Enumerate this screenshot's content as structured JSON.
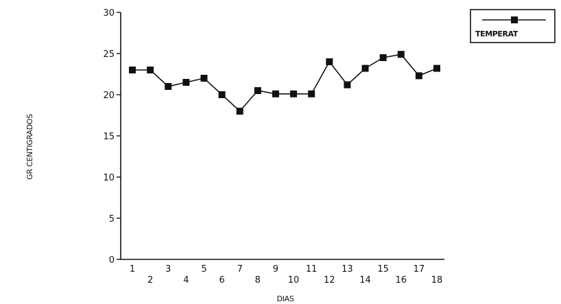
{
  "chart_data": {
    "type": "line",
    "title": "",
    "xlabel": "DIAS",
    "ylabel": "GR CENTIGRADOS",
    "ylim": [
      0,
      30
    ],
    "yticks": [
      "0",
      "5",
      "10",
      "15",
      "20",
      "25",
      "30"
    ],
    "x": [
      "1",
      "2",
      "3",
      "4",
      "5",
      "6",
      "7",
      "8",
      "9",
      "10",
      "11",
      "12",
      "13",
      "14",
      "15",
      "16",
      "17",
      "18"
    ],
    "series": [
      {
        "name": "TEMPERAT",
        "marker": "square",
        "color": "#111111",
        "values": [
          23.0,
          23.0,
          21.0,
          21.5,
          22.0,
          20.0,
          18.0,
          20.5,
          20.1,
          20.1,
          20.1,
          24.0,
          21.2,
          23.2,
          24.5,
          24.9,
          22.3,
          23.2
        ]
      }
    ],
    "grid": false,
    "legend": "top-right"
  }
}
